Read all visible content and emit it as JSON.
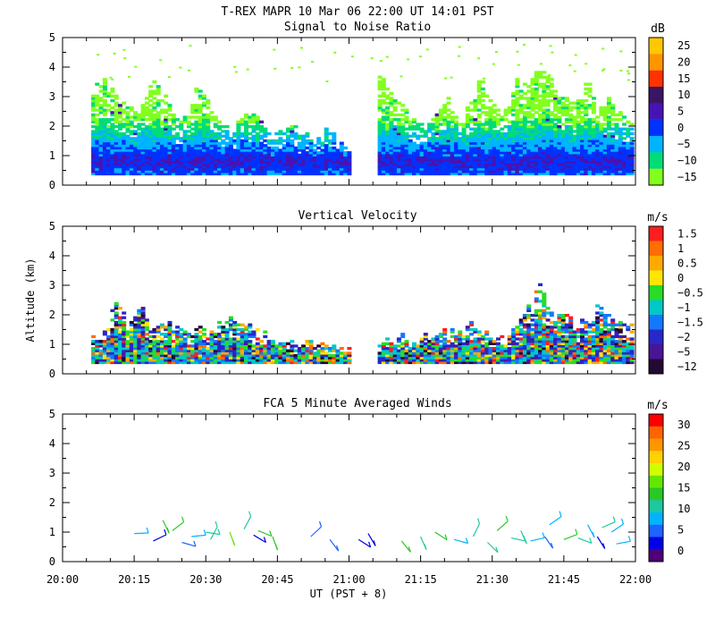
{
  "chart_data": {
    "type": "heatmap",
    "title": "T-REX   MAPR 10 Mar 06   22:00 UT   14:01   PST",
    "xlabel": "UT  (PST + 8)",
    "xlim": [
      0,
      120
    ],
    "x_ticks": [
      "20:00",
      "20:15",
      "20:30",
      "20:45",
      "21:00",
      "21:15",
      "21:30",
      "21:45",
      "22:00"
    ],
    "y_ticks": [
      "0",
      "1",
      "2",
      "3",
      "4",
      "5"
    ],
    "ylim": [
      0,
      5
    ],
    "panels": [
      {
        "title": "Signal to Noise Ratio",
        "ylabel": "",
        "unit": "dB",
        "colorbar_labels": [
          "25",
          "20",
          "15",
          "10",
          "5",
          "0",
          "−5",
          "−10",
          "−15"
        ],
        "colors": [
          "#ffc800",
          "#ff9600",
          "#ff3200",
          "#3c1464",
          "#4614b4",
          "#0032ff",
          "#00b4ff",
          "#00dc78",
          "#82ff1e"
        ],
        "series": [
          {
            "name": "data segment 1",
            "x_range": [
              6,
              60
            ],
            "top_km": [
              3.2,
              3.5,
              2.9,
              2.6,
              2.4,
              3.6,
              3.0,
              2.3,
              2.2,
              3.4,
              2.7,
              2.1,
              1.9,
              2.5,
              2.2,
              1.8,
              1.7,
              2.0,
              1.6,
              1.5,
              1.9,
              1.4,
              1.3
            ]
          },
          {
            "name": "data segment 2",
            "x_range": [
              66,
              119
            ],
            "top_km": [
              3.8,
              3.0,
              2.7,
              2.3,
              1.9,
              2.5,
              3.1,
              2.2,
              2.9,
              3.6,
              2.6,
              2.4,
              3.7,
              3.3,
              4.0,
              3.5,
              3.1,
              2.8,
              3.6,
              2.6,
              2.9,
              2.4,
              2.2
            ]
          }
        ]
      },
      {
        "title": "Vertical Velocity",
        "ylabel": "Altitude (km)",
        "unit": "m/s",
        "colorbar_labels": [
          "1.5",
          "1",
          "0.5",
          "0",
          "−0.5",
          "−1",
          "−1.5",
          "−2",
          "−5",
          "−12"
        ],
        "colors": [
          "#ff1e1e",
          "#ff6e00",
          "#ffaa00",
          "#ffe600",
          "#28dc28",
          "#00c8c8",
          "#1478ff",
          "#2828c8",
          "#4b1496",
          "#230a32"
        ],
        "series": [
          {
            "name": "data segment 1",
            "x_range": [
              6,
              60
            ],
            "top_km": [
              1.3,
              1.3,
              2.6,
              1.6,
              2.6,
              1.5,
              1.7,
              1.6,
              1.4,
              1.5,
              1.2,
              1.8,
              1.9,
              1.6,
              1.4,
              1.3,
              1.2,
              1.1,
              1.0,
              1.1,
              1.0,
              0.9,
              0.8
            ]
          },
          {
            "name": "data segment 2",
            "x_range": [
              66,
              119
            ],
            "top_km": [
              1.1,
              1.2,
              1.3,
              1.1,
              1.2,
              1.4,
              1.3,
              1.5,
              1.6,
              1.3,
              1.4,
              1.2,
              1.6,
              2.3,
              3.0,
              1.9,
              2.1,
              1.8,
              1.7,
              2.2,
              1.9,
              1.6,
              1.5
            ]
          }
        ]
      },
      {
        "title": "FCA 5 Minute Averaged Winds",
        "ylabel": "",
        "unit": "m/s",
        "colorbar_labels": [
          "30",
          "25",
          "20",
          "15",
          "10",
          "5",
          "0"
        ],
        "colors": [
          "#ff0000",
          "#ff6400",
          "#ff9600",
          "#ffd200",
          "#d2ff00",
          "#64e600",
          "#28c828",
          "#1ec8a0",
          "#00b4ff",
          "#1e64ff",
          "#0000e6",
          "#500078"
        ],
        "barbs": [
          {
            "t": 15,
            "z": 0.95,
            "speed": 9
          },
          {
            "t": 19,
            "z": 0.7,
            "speed": 2
          },
          {
            "t": 21,
            "z": 1.4,
            "speed": 14
          },
          {
            "t": 23,
            "z": 1.05,
            "speed": 13
          },
          {
            "t": 25,
            "z": 0.65,
            "speed": 6
          },
          {
            "t": 27,
            "z": 0.85,
            "speed": 7
          },
          {
            "t": 30,
            "z": 1.0,
            "speed": 12
          },
          {
            "t": 31,
            "z": 0.75,
            "speed": 10
          },
          {
            "t": 35,
            "z": 1.0,
            "speed": 16
          },
          {
            "t": 38,
            "z": 1.1,
            "speed": 12
          },
          {
            "t": 40,
            "z": 0.9,
            "speed": 3
          },
          {
            "t": 41,
            "z": 1.05,
            "speed": 14
          },
          {
            "t": 44,
            "z": 0.85,
            "speed": 13
          },
          {
            "t": 52,
            "z": 0.85,
            "speed": 6
          },
          {
            "t": 56,
            "z": 0.75,
            "speed": 5
          },
          {
            "t": 62,
            "z": 0.75,
            "speed": 4
          },
          {
            "t": 64,
            "z": 0.95,
            "speed": 3
          },
          {
            "t": 71,
            "z": 0.7,
            "speed": 14
          },
          {
            "t": 75,
            "z": 0.85,
            "speed": 10
          },
          {
            "t": 78,
            "z": 1.0,
            "speed": 13
          },
          {
            "t": 82,
            "z": 0.75,
            "speed": 7
          },
          {
            "t": 86,
            "z": 0.85,
            "speed": 11
          },
          {
            "t": 89,
            "z": 0.65,
            "speed": 10
          },
          {
            "t": 91,
            "z": 1.05,
            "speed": 14
          },
          {
            "t": 94,
            "z": 0.8,
            "speed": 10
          },
          {
            "t": 96,
            "z": 1.05,
            "speed": 12
          },
          {
            "t": 98,
            "z": 0.7,
            "speed": 8
          },
          {
            "t": 101,
            "z": 0.85,
            "speed": 5
          },
          {
            "t": 102,
            "z": 1.25,
            "speed": 8
          },
          {
            "t": 105,
            "z": 0.75,
            "speed": 14
          },
          {
            "t": 108,
            "z": 0.8,
            "speed": 12
          },
          {
            "t": 110,
            "z": 1.25,
            "speed": 8
          },
          {
            "t": 112,
            "z": 0.85,
            "speed": 4
          },
          {
            "t": 113,
            "z": 1.15,
            "speed": 10
          },
          {
            "t": 115,
            "z": 1.0,
            "speed": 7
          },
          {
            "t": 116,
            "z": 0.6,
            "speed": 9
          }
        ]
      }
    ]
  }
}
